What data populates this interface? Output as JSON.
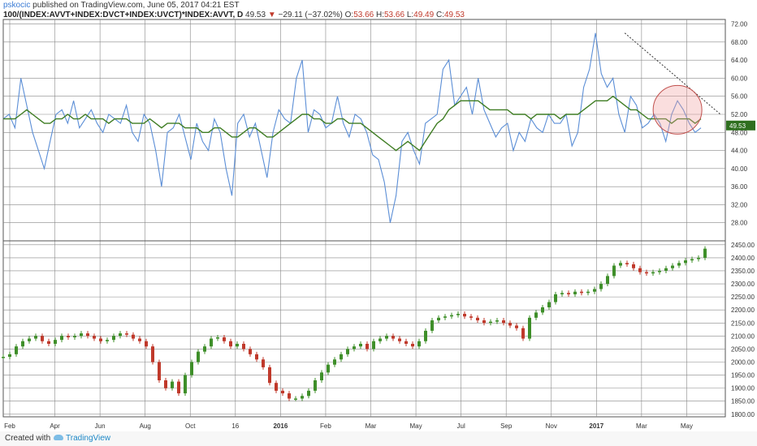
{
  "header": {
    "user": "pskocic",
    "published": "published on TradingView.com, June 05, 2017 04:21 EST",
    "symbol": "100/(INDEX:AVVT+INDEX:DVCT+INDEX:UVCT)*INDEX:AVVT, D",
    "last": "49.53",
    "change": "−29.11 (−37.02%)",
    "o_label": "O:",
    "o_value": "53.66",
    "h_label": "H:",
    "h_value": "53.66",
    "l_label": "L:",
    "l_value": "49.49",
    "c_label": "C:",
    "c_value": "49.53"
  },
  "footer": {
    "created": "Created with",
    "brand": "TradingView"
  },
  "chart_data": [
    {
      "type": "line",
      "title": "",
      "price_label": "49.53",
      "ylim": [
        24,
        73
      ],
      "yticks": [
        "72.00",
        "68.00",
        "64.00",
        "60.00",
        "56.00",
        "52.00",
        "48.00",
        "44.00",
        "40.00",
        "36.00",
        "32.00",
        "28.00"
      ],
      "ytick_values": [
        72,
        68,
        64,
        60,
        56,
        52,
        48,
        44,
        40,
        36,
        32,
        28
      ],
      "x_months": [
        "Feb",
        "Apr",
        "Jun",
        "Aug",
        "Oct",
        "16",
        "2016",
        "Feb",
        "Mar",
        "May",
        "Jul",
        "Sep",
        "Nov",
        "2017",
        "Mar",
        "May"
      ],
      "x": [
        0,
        5,
        10,
        15,
        20,
        25,
        30,
        35,
        40,
        45,
        50,
        55,
        60,
        65,
        70,
        75,
        80,
        85,
        90,
        95,
        100,
        105,
        110,
        115,
        120,
        125,
        130,
        135,
        140,
        145,
        150,
        155,
        160,
        165,
        170,
        175,
        180,
        185,
        190,
        195,
        200,
        205,
        210,
        215,
        220,
        225,
        230,
        235,
        240,
        245,
        250,
        255,
        260,
        265,
        270,
        275,
        280,
        285,
        290,
        295,
        300,
        305,
        310,
        315,
        320,
        325,
        330,
        335,
        340,
        345,
        350,
        355,
        360,
        365,
        370,
        375,
        380,
        385,
        390,
        395,
        400,
        405,
        410,
        415,
        420,
        425,
        430,
        435,
        440,
        445,
        450,
        455,
        460,
        465,
        470,
        475,
        480,
        485,
        490,
        495,
        500,
        505,
        510,
        515,
        520,
        525,
        530,
        535,
        540,
        545,
        550,
        555,
        560,
        565,
        570,
        575,
        580,
        585,
        590,
        595
      ],
      "series": [
        {
          "color": "#5b8ed6",
          "values": [
            51,
            52,
            49,
            60,
            54,
            48,
            44,
            40,
            46,
            52,
            53,
            50,
            55,
            49,
            51,
            53,
            50,
            48,
            52,
            51,
            50,
            54,
            48,
            46,
            52,
            50,
            44,
            36,
            48,
            49,
            52,
            47,
            42,
            50,
            46,
            44,
            51,
            48,
            40,
            34,
            50,
            52,
            47,
            50,
            44,
            38,
            48,
            53,
            51,
            50,
            60,
            64,
            48,
            53,
            52,
            49,
            50,
            56,
            50,
            47,
            52,
            51,
            48,
            43,
            42,
            37,
            28,
            34,
            46,
            48,
            44,
            41,
            50,
            51,
            52,
            62,
            64,
            54,
            56,
            58,
            52,
            60,
            53,
            50,
            47,
            49,
            50,
            44,
            48,
            46,
            51,
            49,
            48,
            52,
            50,
            50,
            52,
            45,
            48,
            58,
            62,
            70,
            61,
            58,
            60,
            52,
            48,
            56,
            54,
            49,
            50,
            52,
            50,
            46,
            52,
            55,
            53,
            50,
            48,
            49
          ]
        },
        {
          "color": "#3f7d23",
          "values": [
            51,
            51,
            51,
            52,
            53,
            52,
            51,
            50,
            50,
            51,
            51,
            52,
            51,
            51,
            52,
            51,
            51,
            51,
            50,
            51,
            51,
            51,
            50,
            50,
            50,
            51,
            50,
            49,
            50,
            50,
            50,
            49,
            49,
            49,
            48,
            48,
            49,
            49,
            48,
            47,
            47,
            48,
            49,
            49,
            48,
            47,
            47,
            48,
            49,
            50,
            51,
            52,
            52,
            51,
            51,
            50,
            50,
            51,
            51,
            50,
            50,
            50,
            49,
            48,
            47,
            46,
            45,
            44,
            45,
            46,
            45,
            44,
            46,
            48,
            50,
            51,
            53,
            54,
            55,
            55,
            55,
            55,
            54,
            53,
            53,
            53,
            53,
            52,
            52,
            52,
            51,
            52,
            52,
            52,
            52,
            51,
            52,
            52,
            52,
            53,
            54,
            55,
            55,
            55,
            56,
            55,
            54,
            53,
            53,
            52,
            51,
            51,
            51,
            51,
            50,
            51,
            51,
            51,
            50,
            51
          ]
        }
      ]
    },
    {
      "type": "candlestick",
      "title": "",
      "ylim": [
        1790,
        2465
      ],
      "yticks": [
        "2450.00",
        "2400.00",
        "2350.00",
        "2300.00",
        "2250.00",
        "2200.00",
        "2150.00",
        "2100.00",
        "2050.00",
        "2000.00",
        "1950.00",
        "1900.00",
        "1850.00",
        "1800.00"
      ],
      "ytick_values": [
        2450,
        2400,
        2350,
        2300,
        2250,
        2200,
        2150,
        2100,
        2050,
        2000,
        1950,
        1900,
        1850,
        1800
      ],
      "x": [
        0,
        8,
        16,
        24,
        32,
        40,
        48,
        56,
        64,
        72,
        80,
        88,
        96,
        104,
        112,
        120,
        128,
        136,
        144,
        152,
        160,
        168,
        176,
        184,
        192,
        200,
        208,
        216,
        224,
        232,
        240,
        248,
        256,
        264,
        272,
        280,
        288,
        296,
        304,
        312,
        320,
        328,
        336,
        344,
        352,
        360,
        368,
        376,
        384,
        392,
        400,
        408,
        416,
        424,
        432,
        440,
        448,
        456,
        464,
        472,
        480,
        488,
        496,
        504,
        512,
        520,
        528,
        536,
        544,
        552,
        560,
        568,
        576,
        584,
        592,
        600,
        608,
        616,
        624,
        632,
        640,
        648,
        656,
        664,
        672,
        680,
        688,
        696,
        704,
        712,
        720,
        728,
        736,
        744,
        752,
        760,
        768,
        776,
        784,
        792,
        800,
        808,
        816,
        824,
        832,
        840,
        848,
        856,
        864
      ],
      "close": [
        2020,
        2030,
        2060,
        2080,
        2090,
        2100,
        2080,
        2070,
        2085,
        2100,
        2095,
        2100,
        2110,
        2100,
        2090,
        2080,
        2085,
        2100,
        2110,
        2105,
        2090,
        2080,
        2060,
        2000,
        1930,
        1900,
        1925,
        1880,
        1950,
        2000,
        2040,
        2060,
        2090,
        2095,
        2080,
        2060,
        2070,
        2050,
        2030,
        2010,
        1980,
        1920,
        1890,
        1880,
        1860,
        1860,
        1870,
        1890,
        1930,
        1960,
        1990,
        2010,
        2030,
        2050,
        2060,
        2070,
        2050,
        2080,
        2090,
        2100,
        2090,
        2080,
        2070,
        2060,
        2080,
        2120,
        2160,
        2170,
        2175,
        2180,
        2185,
        2175,
        2170,
        2160,
        2150,
        2155,
        2160,
        2150,
        2140,
        2130,
        2090,
        2170,
        2190,
        2210,
        2230,
        2260,
        2265,
        2260,
        2270,
        2265,
        2270,
        2280,
        2300,
        2330,
        2370,
        2380,
        2375,
        2360,
        2345,
        2340,
        2345,
        2350,
        2360,
        2370,
        2380,
        2390,
        2395,
        2400,
        2435
      ]
    }
  ]
}
